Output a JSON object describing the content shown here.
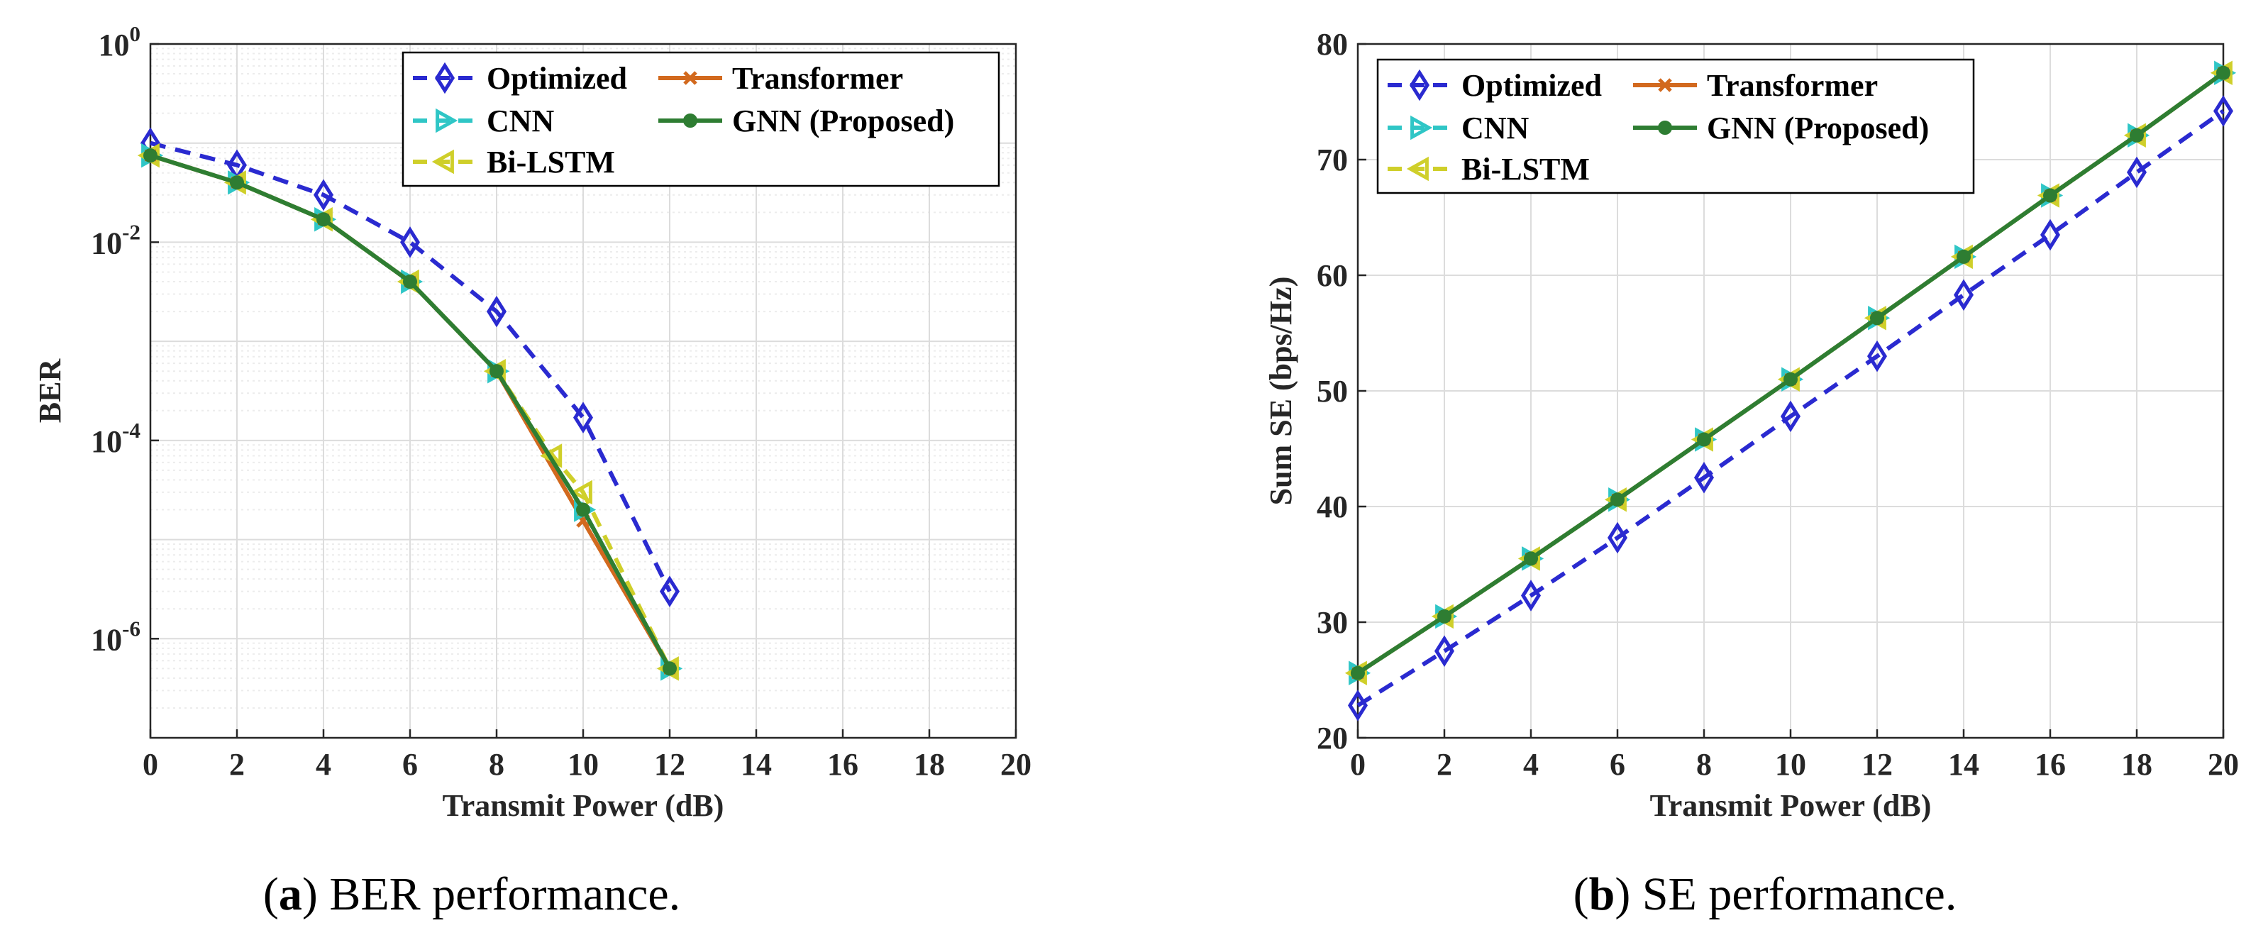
{
  "colors": {
    "optimized": "#2a2ad0",
    "cnn": "#2fc6c6",
    "bilstm": "#cfcf2a",
    "transformer": "#d2691e",
    "gnn": "#2e7d32",
    "grid_major": "#dcdcdc",
    "grid_minor": "#ececec",
    "axis": "#262626"
  },
  "chart_data": [
    {
      "type": "line",
      "yscale": "log",
      "xlabel": "Transmit Power (dB)",
      "ylabel": "BER",
      "xlim": [
        0,
        20
      ],
      "ylim": [
        1e-07,
        1
      ],
      "x_ticks": [
        0,
        2,
        4,
        6,
        8,
        10,
        12,
        14,
        16,
        18,
        20
      ],
      "y_ticks": [
        {
          "value": 1,
          "base": "10",
          "exp": "0"
        },
        {
          "value": 0.01,
          "base": "10",
          "exp": "-2"
        },
        {
          "value": 0.0001,
          "base": "10",
          "exp": "-4"
        },
        {
          "value": 1e-06,
          "base": "10",
          "exp": "-6"
        }
      ],
      "legend_position": "top-right",
      "caption": {
        "letter": "a",
        "text": "BER performance."
      },
      "series": [
        {
          "key": "optimized",
          "name": "Optimized",
          "x": [
            0,
            2,
            4,
            6,
            8,
            10,
            12
          ],
          "values": [
            0.1,
            0.06,
            0.03,
            0.01,
            0.002,
            0.00017,
            3e-06
          ]
        },
        {
          "key": "transformer",
          "name": "Transformer",
          "x": [
            0,
            2,
            4,
            6,
            8,
            10,
            12
          ],
          "values": [
            0.075,
            0.04,
            0.017,
            0.004,
            0.0005,
            1.55e-05,
            5e-07
          ]
        },
        {
          "key": "cnn",
          "name": "CNN",
          "x": [
            0,
            2,
            4,
            6,
            8,
            10,
            12
          ],
          "values": [
            0.075,
            0.04,
            0.017,
            0.004,
            0.0005,
            2e-05,
            5e-07
          ]
        },
        {
          "key": "gnn",
          "name": "GNN (Proposed)",
          "x": [
            0,
            2,
            4,
            6,
            8,
            10,
            12
          ],
          "values": [
            0.075,
            0.04,
            0.017,
            0.004,
            0.0005,
            2e-05,
            5e-07
          ]
        },
        {
          "key": "bilstm",
          "name": "Bi-LSTM",
          "x": [
            0,
            2,
            4,
            6,
            8,
            9.3,
            10,
            12
          ],
          "values": [
            0.075,
            0.04,
            0.017,
            0.004,
            0.0005,
            7e-05,
            3e-05,
            5e-07
          ]
        }
      ]
    },
    {
      "type": "line",
      "yscale": "linear",
      "xlabel": "Transmit Power (dB)",
      "ylabel": "Sum SE (bps/Hz)",
      "xlim": [
        0,
        20
      ],
      "ylim": [
        20,
        80
      ],
      "x_ticks": [
        0,
        2,
        4,
        6,
        8,
        10,
        12,
        14,
        16,
        18,
        20
      ],
      "y_ticks": [
        20,
        30,
        40,
        50,
        60,
        70,
        80
      ],
      "legend_position": "top-left",
      "caption": {
        "letter": "b",
        "text": "SE performance."
      },
      "series": [
        {
          "key": "optimized",
          "name": "Optimized",
          "x": [
            0,
            2,
            4,
            6,
            8,
            10,
            12,
            14,
            16,
            18,
            20
          ],
          "values": [
            22.8,
            27.5,
            32.3,
            37.3,
            42.5,
            47.8,
            53.0,
            58.3,
            63.5,
            68.9,
            74.2
          ]
        },
        {
          "key": "transformer",
          "name": "Transformer",
          "x": [
            0,
            2,
            4,
            6,
            8,
            10,
            12,
            14,
            16,
            18,
            20
          ],
          "values": [
            25.6,
            30.5,
            35.5,
            40.6,
            45.8,
            51.0,
            56.3,
            61.6,
            66.9,
            72.1,
            77.5
          ]
        },
        {
          "key": "cnn",
          "name": "CNN",
          "x": [
            0,
            2,
            4,
            6,
            8,
            10,
            12,
            14,
            16,
            18,
            20
          ],
          "values": [
            25.6,
            30.5,
            35.5,
            40.6,
            45.8,
            51.0,
            56.3,
            61.6,
            66.9,
            72.1,
            77.5
          ]
        },
        {
          "key": "gnn",
          "name": "GNN (Proposed)",
          "x": [
            0,
            2,
            4,
            6,
            8,
            10,
            12,
            14,
            16,
            18,
            20
          ],
          "values": [
            25.6,
            30.5,
            35.5,
            40.6,
            45.8,
            51.0,
            56.3,
            61.6,
            66.9,
            72.1,
            77.5
          ]
        },
        {
          "key": "bilstm",
          "name": "Bi-LSTM",
          "x": [
            0,
            2,
            4,
            6,
            8,
            10,
            12,
            14,
            16,
            18,
            20
          ],
          "values": [
            25.6,
            30.5,
            35.5,
            40.6,
            45.8,
            51.0,
            56.3,
            61.6,
            66.9,
            72.1,
            77.5
          ]
        }
      ]
    }
  ]
}
